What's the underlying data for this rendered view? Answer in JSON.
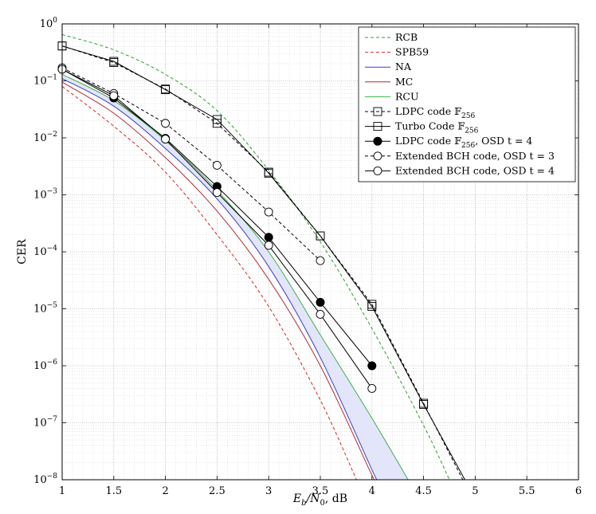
{
  "chart_data": {
    "type": "line",
    "title": "",
    "xlabel_main": "E",
    "xlabel_sub": "b",
    "xlabel_rest": "/N",
    "xlabel_sub2": "0",
    "xlabel_unit": ", dB",
    "ylabel": "CER",
    "xlim": [
      1,
      6
    ],
    "ylim_exponents": [
      -8,
      0
    ],
    "yscale": "log",
    "grid": true,
    "legend_position": "top-right",
    "x_ticks": [
      1,
      1.5,
      2,
      2.5,
      3,
      3.5,
      4,
      4.5,
      5,
      5.5,
      6
    ],
    "x_tick_labels": [
      "1",
      "1.5",
      "2",
      "2.5",
      "3",
      "3.5",
      "4",
      "4.5",
      "5",
      "5.5",
      "6"
    ],
    "y_ticks": [
      {
        "base": "10",
        "exp": "0",
        "value": 1
      },
      {
        "base": "10",
        "exp": "−1",
        "value": 0.1
      },
      {
        "base": "10",
        "exp": "−2",
        "value": 0.01
      },
      {
        "base": "10",
        "exp": "−3",
        "value": 0.001
      },
      {
        "base": "10",
        "exp": "−4",
        "value": 0.0001
      },
      {
        "base": "10",
        "exp": "−5",
        "value": 1e-05
      },
      {
        "base": "10",
        "exp": "−6",
        "value": 1e-06
      },
      {
        "base": "10",
        "exp": "−7",
        "value": 1e-07
      },
      {
        "base": "10",
        "exp": "−8",
        "value": 1e-08
      }
    ],
    "shaded_region": {
      "between": [
        "NA",
        "RCU"
      ],
      "color": "#e3e6fb"
    },
    "series": [
      {
        "name": "RCB",
        "color": "#2ca02c",
        "dash": "dashed",
        "marker": "none",
        "x": [
          1,
          1.5,
          2,
          2.5,
          3,
          3.5,
          4,
          4.5,
          4.75
        ],
        "y": [
          0.65,
          0.35,
          0.13,
          0.03,
          0.0027,
          0.00015,
          4.5e-06,
          9e-08,
          1e-08
        ]
      },
      {
        "name": "SPB59",
        "color": "#d62728",
        "dash": "dashed",
        "marker": "none",
        "x": [
          1,
          1.5,
          2,
          2.5,
          3,
          3.5,
          3.85
        ],
        "y": [
          0.08,
          0.016,
          0.0025,
          0.0002,
          1.1e-05,
          2.5e-07,
          1e-08
        ]
      },
      {
        "name": "NA",
        "color": "#3b3fc0",
        "dash": "solid",
        "marker": "none",
        "x": [
          1,
          1.5,
          2,
          2.5,
          3,
          3.5,
          4,
          4.05
        ],
        "y": [
          0.11,
          0.036,
          0.0065,
          0.00085,
          5.5e-05,
          1.4e-06,
          1.5e-08,
          1e-08
        ]
      },
      {
        "name": "MC",
        "color": "#b02a3a",
        "dash": "solid",
        "marker": "none",
        "x": [
          1,
          1.5,
          2,
          2.5,
          3,
          3.5,
          4,
          4.03
        ],
        "y": [
          0.095,
          0.027,
          0.0045,
          0.00052,
          3.3e-05,
          1e-06,
          1.2e-08,
          1e-08
        ]
      },
      {
        "name": "RCU",
        "color": "#3cb043",
        "dash": "solid",
        "marker": "none",
        "x": [
          1,
          1.5,
          2,
          2.5,
          3,
          3.5,
          4,
          4.35
        ],
        "y": [
          0.13,
          0.045,
          0.009,
          0.0012,
          0.0001,
          3.5e-06,
          1.2e-07,
          1e-08
        ]
      },
      {
        "name": "LDPC code 𝔽",
        "sub": "256",
        "suffix": "",
        "color": "#000000",
        "dash": "dashed",
        "marker": "square-open",
        "x": [
          1,
          1.5,
          2,
          2.5,
          3,
          3.5,
          4,
          4.5,
          4.88
        ],
        "y": [
          0.41,
          0.21,
          0.072,
          0.018,
          0.0025,
          0.00019,
          1.2e-05,
          2.2e-07,
          1e-08
        ]
      },
      {
        "name": "Turbo Code 𝔽",
        "sub": "256",
        "suffix": "",
        "color": "#000000",
        "dash": "solid",
        "marker": "square-open",
        "x": [
          1,
          1.5,
          2,
          2.5,
          3,
          3.5,
          4,
          4.5,
          4.9
        ],
        "y": [
          0.41,
          0.22,
          0.07,
          0.021,
          0.0024,
          0.00019,
          1.1e-05,
          2.1e-07,
          1e-08
        ]
      },
      {
        "name": "LDPC code 𝔽",
        "sub": "256",
        "suffix": ", OSD t = 4",
        "color": "#000000",
        "dash": "solid",
        "marker": "circle-filled",
        "x": [
          1,
          1.5,
          2,
          2.5,
          3,
          3.5,
          4
        ],
        "y": [
          0.16,
          0.05,
          0.0098,
          0.0014,
          0.00018,
          1.3e-05,
          1e-06
        ]
      },
      {
        "name": "Extended BCH code, OSD t = 3",
        "sub": "",
        "suffix": "",
        "color": "#000000",
        "dash": "dashed",
        "marker": "circle-open",
        "x": [
          1,
          1.5,
          2,
          2.5,
          3,
          3.5
        ],
        "y": [
          0.17,
          0.06,
          0.018,
          0.0033,
          0.0005,
          7e-05
        ]
      },
      {
        "name": "Extended BCH code, OSD t = 4",
        "sub": "",
        "suffix": "",
        "color": "#000000",
        "dash": "solid",
        "marker": "circle-open",
        "x": [
          1,
          1.5,
          2,
          2.5,
          3,
          3.5,
          4
        ],
        "y": [
          0.16,
          0.055,
          0.0095,
          0.0011,
          0.00013,
          8e-06,
          4e-07
        ]
      }
    ],
    "legend": [
      {
        "label": "RCB",
        "sub": "",
        "suffix": ""
      },
      {
        "label": "SPB59",
        "sub": "",
        "suffix": ""
      },
      {
        "label": "NA",
        "sub": "",
        "suffix": ""
      },
      {
        "label": "MC",
        "sub": "",
        "suffix": ""
      },
      {
        "label": "RCU",
        "sub": "",
        "suffix": ""
      },
      {
        "label": "LDPC code 𝔽",
        "sub": "256",
        "suffix": ""
      },
      {
        "label": "Turbo Code 𝔽",
        "sub": "256",
        "suffix": ""
      },
      {
        "label": "LDPC code 𝔽",
        "sub": "256",
        "suffix": ", OSD t = 4"
      },
      {
        "label": "Extended BCH code, OSD t = 3",
        "sub": "",
        "suffix": ""
      },
      {
        "label": "Extended BCH code, OSD t = 4",
        "sub": "",
        "suffix": ""
      }
    ]
  }
}
